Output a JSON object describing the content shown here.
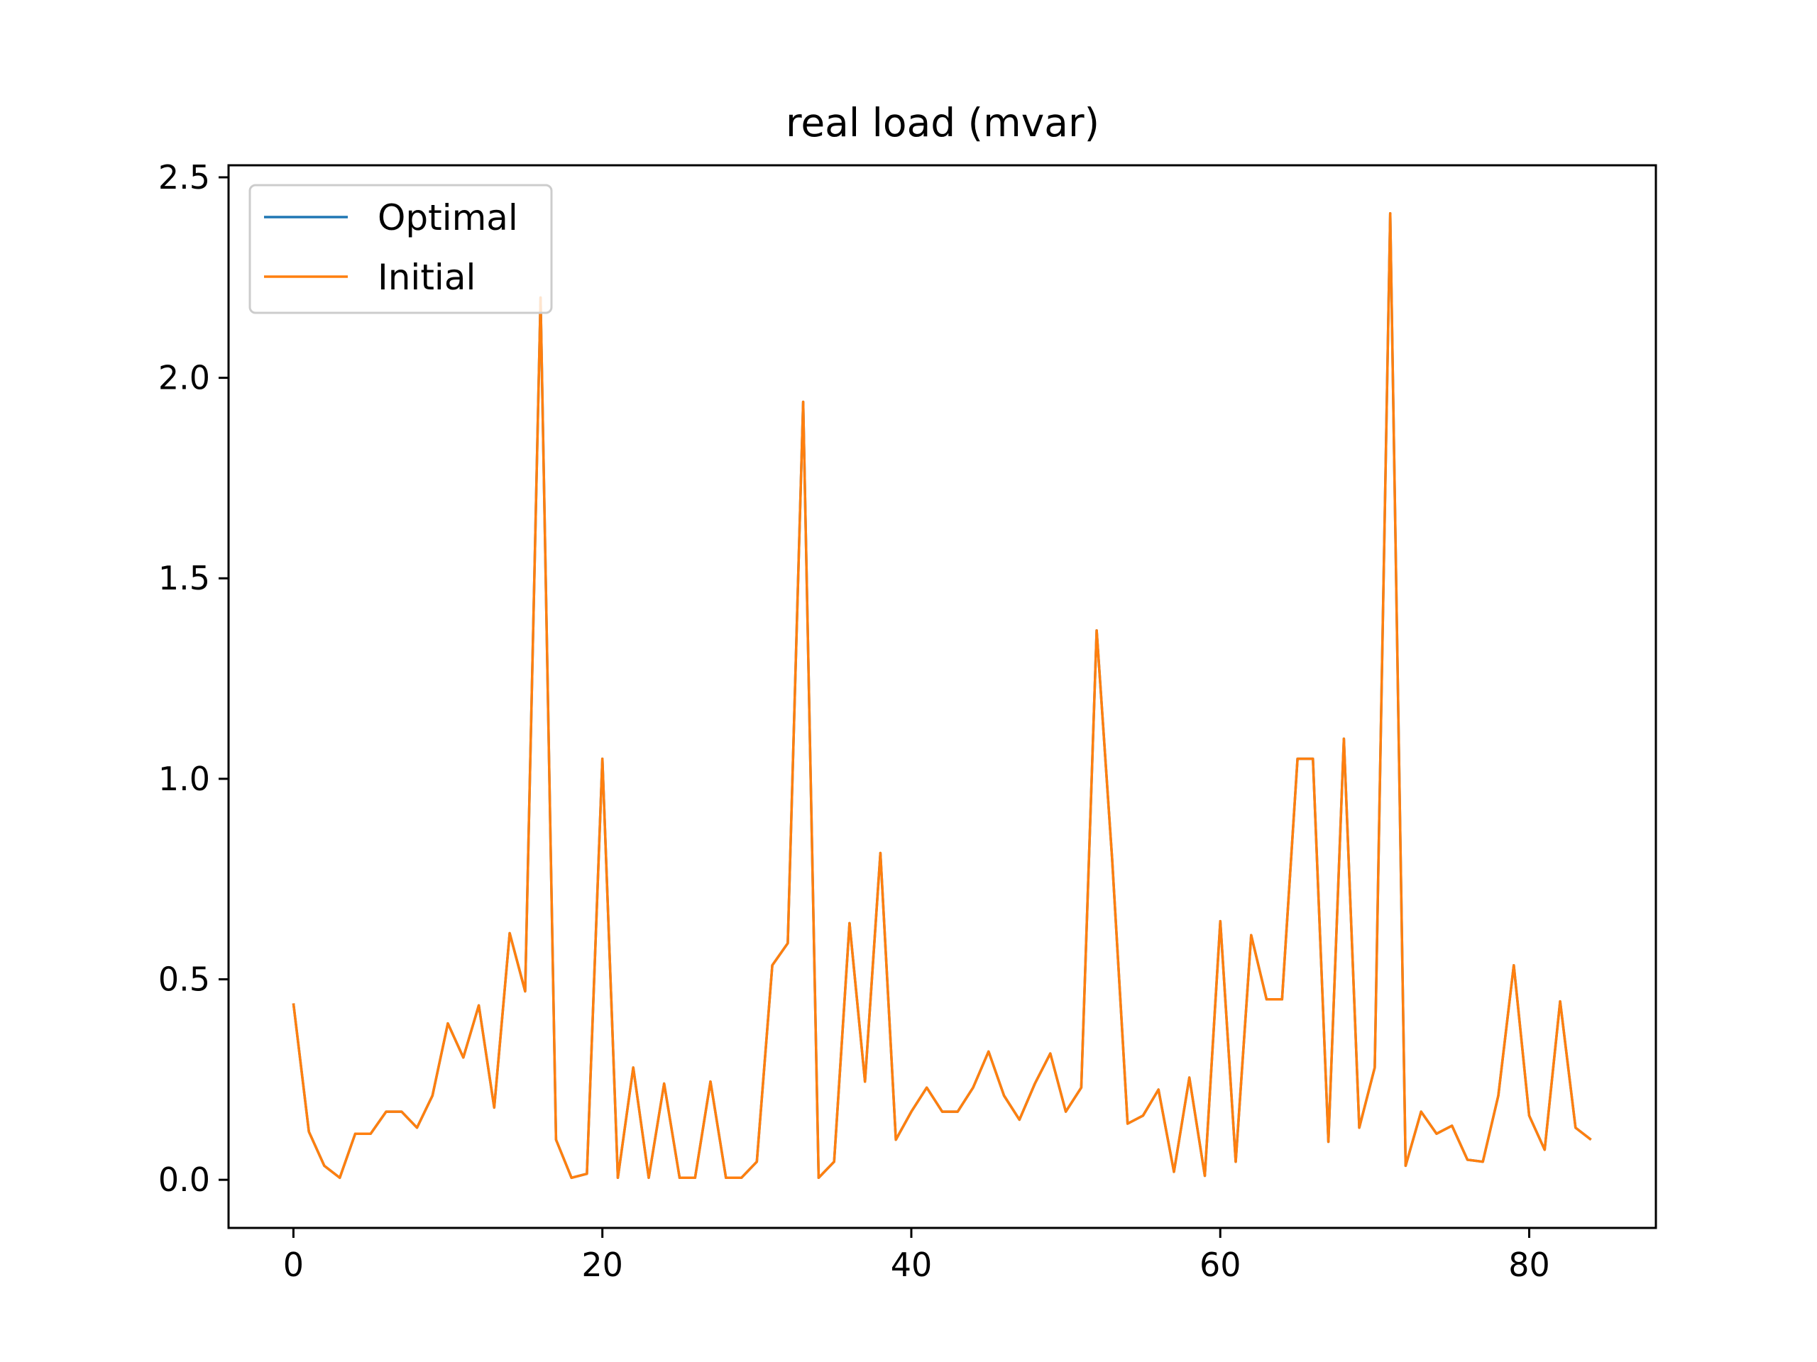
{
  "chart_data": {
    "type": "line",
    "title": "real load (mvar)",
    "xlabel": "",
    "ylabel": "",
    "xlim": [
      -4.2,
      88.2
    ],
    "ylim": [
      -0.12,
      2.53
    ],
    "xticks": [
      0,
      20,
      40,
      60,
      80
    ],
    "yticks": [
      0.0,
      0.5,
      1.0,
      1.5,
      2.0,
      2.5
    ],
    "xtick_labels": [
      "0",
      "20",
      "40",
      "60",
      "80"
    ],
    "ytick_labels": [
      "0.0",
      "0.5",
      "1.0",
      "1.5",
      "2.0",
      "2.5"
    ],
    "grid": false,
    "legend_position": "upper-left",
    "x": [
      0,
      1,
      2,
      3,
      4,
      5,
      6,
      7,
      8,
      9,
      10,
      11,
      12,
      13,
      14,
      15,
      16,
      17,
      18,
      19,
      20,
      21,
      22,
      23,
      24,
      25,
      26,
      27,
      28,
      29,
      30,
      31,
      32,
      33,
      34,
      35,
      36,
      37,
      38,
      39,
      40,
      41,
      42,
      43,
      44,
      45,
      46,
      47,
      48,
      49,
      50,
      51,
      52,
      53,
      54,
      55,
      56,
      57,
      58,
      59,
      60,
      61,
      62,
      63,
      64,
      65,
      66,
      67,
      68,
      69,
      70,
      71,
      72,
      73,
      74,
      75,
      76,
      77,
      78,
      79,
      80,
      81,
      82,
      83,
      84
    ],
    "series": [
      {
        "name": "Optimal",
        "color": "#1f77b4",
        "values": [
          0.44,
          0.12,
          0.035,
          0.005,
          0.115,
          0.115,
          0.17,
          0.17,
          0.13,
          0.21,
          0.39,
          0.305,
          0.435,
          0.18,
          0.615,
          0.47,
          2.2,
          0.1,
          0.005,
          0.015,
          1.05,
          0.005,
          0.28,
          0.005,
          0.24,
          0.005,
          0.005,
          0.245,
          0.005,
          0.005,
          0.045,
          0.535,
          0.59,
          1.94,
          0.005,
          0.045,
          0.64,
          0.245,
          0.815,
          0.1,
          0.17,
          0.23,
          0.17,
          0.17,
          0.23,
          0.32,
          0.21,
          0.15,
          0.24,
          0.315,
          0.17,
          0.23,
          1.37,
          0.8,
          0.14,
          0.16,
          0.225,
          0.02,
          0.255,
          0.01,
          0.645,
          0.045,
          0.61,
          0.45,
          0.45,
          1.05,
          1.05,
          0.095,
          1.1,
          0.13,
          0.28,
          2.41,
          0.035,
          0.17,
          0.115,
          0.135,
          0.05,
          0.045,
          0.21,
          0.535,
          0.16,
          0.075,
          0.445,
          0.13,
          0.1
        ]
      },
      {
        "name": "Initial",
        "color": "#ff7f0e",
        "values": [
          0.44,
          0.12,
          0.035,
          0.005,
          0.115,
          0.115,
          0.17,
          0.17,
          0.13,
          0.21,
          0.39,
          0.305,
          0.435,
          0.18,
          0.615,
          0.47,
          2.2,
          0.1,
          0.005,
          0.015,
          1.05,
          0.005,
          0.28,
          0.005,
          0.24,
          0.005,
          0.005,
          0.245,
          0.005,
          0.005,
          0.045,
          0.535,
          0.59,
          1.94,
          0.005,
          0.045,
          0.64,
          0.245,
          0.815,
          0.1,
          0.17,
          0.23,
          0.17,
          0.17,
          0.23,
          0.32,
          0.21,
          0.15,
          0.24,
          0.315,
          0.17,
          0.23,
          1.37,
          0.8,
          0.14,
          0.16,
          0.225,
          0.02,
          0.255,
          0.01,
          0.645,
          0.045,
          0.61,
          0.45,
          0.45,
          1.05,
          1.05,
          0.095,
          1.1,
          0.13,
          0.28,
          2.41,
          0.035,
          0.17,
          0.115,
          0.135,
          0.05,
          0.045,
          0.21,
          0.535,
          0.16,
          0.075,
          0.445,
          0.13,
          0.1
        ]
      }
    ]
  }
}
